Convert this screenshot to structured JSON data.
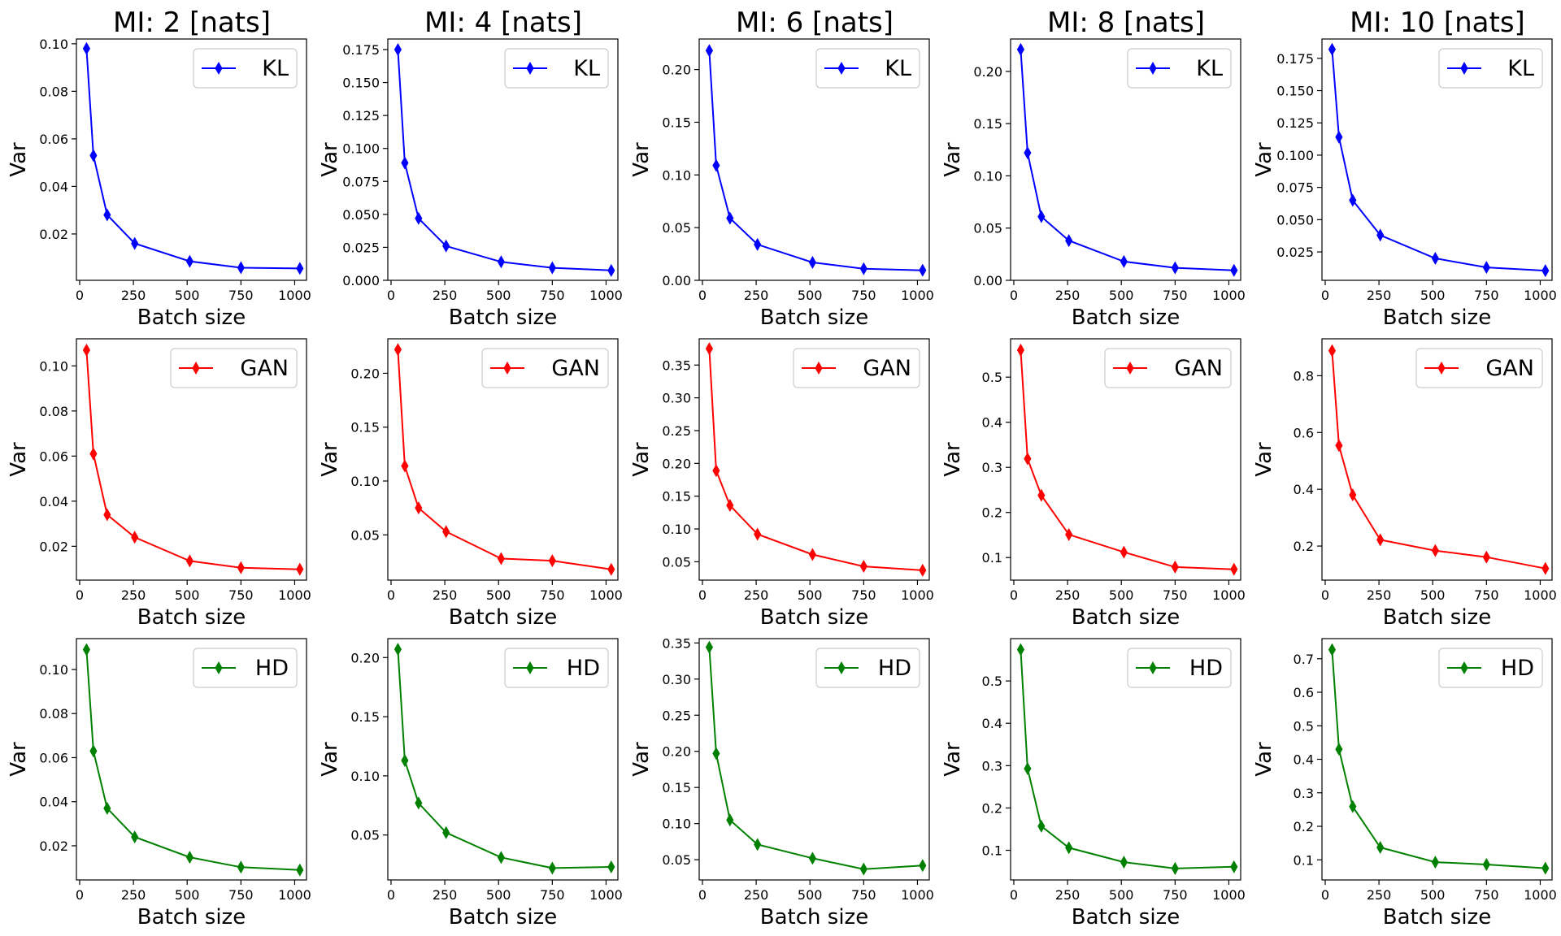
{
  "figure": {
    "column_titles": [
      "MI: 2 [nats]",
      "MI: 4 [nats]",
      "MI: 6 [nats]",
      "MI: 8 [nats]",
      "MI: 10 [nats]"
    ],
    "row_series": [
      "KL",
      "GAN",
      "HD"
    ],
    "row_colors": [
      "#0000ff",
      "#ff0000",
      "#008000"
    ]
  },
  "chart_data": [
    {
      "type": "line",
      "title": "MI: 2 [nats]",
      "series": [
        {
          "name": "KL",
          "color": "#0000ff",
          "x": [
            32,
            64,
            128,
            256,
            512,
            750,
            1024
          ],
          "values": [
            0.098,
            0.053,
            0.028,
            0.016,
            0.0085,
            0.0058,
            0.0055
          ]
        }
      ],
      "xlabel": "Batch size",
      "ylabel": "Var",
      "xlim": [
        -15,
        1055
      ],
      "ylim": [
        0.0005,
        0.102
      ],
      "xticks": [
        0,
        250,
        500,
        750,
        1000
      ],
      "yticks": [
        0.02,
        0.04,
        0.06,
        0.08,
        0.1
      ],
      "ytick_labels": [
        "0.02",
        "0.04",
        "0.06",
        "0.08",
        "0.10"
      ],
      "legend": "top-right"
    },
    {
      "type": "line",
      "title": "MI: 4 [nats]",
      "series": [
        {
          "name": "KL",
          "color": "#0000ff",
          "x": [
            32,
            64,
            128,
            256,
            512,
            750,
            1024
          ],
          "values": [
            0.175,
            0.089,
            0.047,
            0.026,
            0.014,
            0.0095,
            0.0075
          ]
        }
      ],
      "xlabel": "Batch size",
      "ylabel": "Var",
      "xlim": [
        -15,
        1055
      ],
      "ylim": [
        0.0,
        0.183
      ],
      "xticks": [
        0,
        250,
        500,
        750,
        1000
      ],
      "yticks": [
        0.0,
        0.025,
        0.05,
        0.075,
        0.1,
        0.125,
        0.15,
        0.175
      ],
      "ytick_labels": [
        "0.000",
        "0.025",
        "0.050",
        "0.075",
        "0.100",
        "0.125",
        "0.150",
        "0.175"
      ],
      "legend": "top-right"
    },
    {
      "type": "line",
      "title": "MI: 6 [nats]",
      "series": [
        {
          "name": "KL",
          "color": "#0000ff",
          "x": [
            32,
            64,
            128,
            256,
            512,
            750,
            1024
          ],
          "values": [
            0.218,
            0.109,
            0.059,
            0.034,
            0.017,
            0.011,
            0.0095
          ]
        }
      ],
      "xlabel": "Batch size",
      "ylabel": "Var",
      "xlim": [
        -15,
        1055
      ],
      "ylim": [
        0.0,
        0.229
      ],
      "xticks": [
        0,
        250,
        500,
        750,
        1000
      ],
      "yticks": [
        0.0,
        0.05,
        0.1,
        0.15,
        0.2
      ],
      "ytick_labels": [
        "0.00",
        "0.05",
        "0.10",
        "0.15",
        "0.20"
      ],
      "legend": "top-right"
    },
    {
      "type": "line",
      "title": "MI: 8 [nats]",
      "series": [
        {
          "name": "KL",
          "color": "#0000ff",
          "x": [
            32,
            64,
            128,
            256,
            512,
            750,
            1024
          ],
          "values": [
            0.221,
            0.122,
            0.061,
            0.038,
            0.018,
            0.012,
            0.0095
          ]
        }
      ],
      "xlabel": "Batch size",
      "ylabel": "Var",
      "xlim": [
        -15,
        1055
      ],
      "ylim": [
        0.0,
        0.231
      ],
      "xticks": [
        0,
        250,
        500,
        750,
        1000
      ],
      "yticks": [
        0.0,
        0.05,
        0.1,
        0.15,
        0.2
      ],
      "ytick_labels": [
        "0.00",
        "0.05",
        "0.10",
        "0.15",
        "0.20"
      ],
      "legend": "top-right"
    },
    {
      "type": "line",
      "title": "MI: 10 [nats]",
      "series": [
        {
          "name": "KL",
          "color": "#0000ff",
          "x": [
            32,
            64,
            128,
            256,
            512,
            750,
            1024
          ],
          "values": [
            0.182,
            0.114,
            0.065,
            0.038,
            0.02,
            0.013,
            0.0105
          ]
        }
      ],
      "xlabel": "Batch size",
      "ylabel": "Var",
      "xlim": [
        -15,
        1055
      ],
      "ylim": [
        0.003,
        0.19
      ],
      "xticks": [
        0,
        250,
        500,
        750,
        1000
      ],
      "yticks": [
        0.025,
        0.05,
        0.075,
        0.1,
        0.125,
        0.15,
        0.175
      ],
      "ytick_labels": [
        "0.025",
        "0.050",
        "0.075",
        "0.100",
        "0.125",
        "0.150",
        "0.175"
      ],
      "legend": "top-right"
    },
    {
      "type": "line",
      "title": "",
      "series": [
        {
          "name": "GAN",
          "color": "#ff0000",
          "x": [
            32,
            64,
            128,
            256,
            512,
            750,
            1024
          ],
          "values": [
            0.107,
            0.061,
            0.034,
            0.024,
            0.0135,
            0.0105,
            0.0098
          ]
        }
      ],
      "xlabel": "Batch size",
      "ylabel": "Var",
      "xlim": [
        -15,
        1055
      ],
      "ylim": [
        0.005,
        0.112
      ],
      "xticks": [
        0,
        250,
        500,
        750,
        1000
      ],
      "yticks": [
        0.02,
        0.04,
        0.06,
        0.08,
        0.1
      ],
      "ytick_labels": [
        "0.02",
        "0.04",
        "0.06",
        "0.08",
        "0.10"
      ],
      "legend": "top-right"
    },
    {
      "type": "line",
      "title": "",
      "series": [
        {
          "name": "GAN",
          "color": "#ff0000",
          "x": [
            32,
            64,
            128,
            256,
            512,
            750,
            1024
          ],
          "values": [
            0.222,
            0.114,
            0.075,
            0.053,
            0.028,
            0.026,
            0.018
          ]
        }
      ],
      "xlabel": "Batch size",
      "ylabel": "Var",
      "xlim": [
        -15,
        1055
      ],
      "ylim": [
        0.008,
        0.232
      ],
      "xticks": [
        0,
        250,
        500,
        750,
        1000
      ],
      "yticks": [
        0.05,
        0.1,
        0.15,
        0.2
      ],
      "ytick_labels": [
        "0.05",
        "0.10",
        "0.15",
        "0.20"
      ],
      "legend": "top-right"
    },
    {
      "type": "line",
      "title": "",
      "series": [
        {
          "name": "GAN",
          "color": "#ff0000",
          "x": [
            32,
            64,
            128,
            256,
            512,
            750,
            1024
          ],
          "values": [
            0.375,
            0.189,
            0.136,
            0.092,
            0.061,
            0.043,
            0.037
          ]
        }
      ],
      "xlabel": "Batch size",
      "ylabel": "Var",
      "xlim": [
        -15,
        1055
      ],
      "ylim": [
        0.022,
        0.39
      ],
      "xticks": [
        0,
        250,
        500,
        750,
        1000
      ],
      "yticks": [
        0.05,
        0.1,
        0.15,
        0.2,
        0.25,
        0.3,
        0.35
      ],
      "ytick_labels": [
        "0.05",
        "0.10",
        "0.15",
        "0.20",
        "0.25",
        "0.30",
        "0.35"
      ],
      "legend": "top-right"
    },
    {
      "type": "line",
      "title": "",
      "series": [
        {
          "name": "GAN",
          "color": "#ff0000",
          "x": [
            32,
            64,
            128,
            256,
            512,
            750,
            1024
          ],
          "values": [
            0.56,
            0.319,
            0.238,
            0.151,
            0.112,
            0.079,
            0.074
          ]
        }
      ],
      "xlabel": "Batch size",
      "ylabel": "Var",
      "xlim": [
        -15,
        1055
      ],
      "ylim": [
        0.05,
        0.585
      ],
      "xticks": [
        0,
        250,
        500,
        750,
        1000
      ],
      "yticks": [
        0.1,
        0.2,
        0.3,
        0.4,
        0.5
      ],
      "ytick_labels": [
        "0.1",
        "0.2",
        "0.3",
        "0.4",
        "0.5"
      ],
      "legend": "top-right"
    },
    {
      "type": "line",
      "title": "",
      "series": [
        {
          "name": "GAN",
          "color": "#ff0000",
          "x": [
            32,
            64,
            128,
            256,
            512,
            750,
            1024
          ],
          "values": [
            0.888,
            0.554,
            0.38,
            0.222,
            0.184,
            0.161,
            0.121
          ]
        }
      ],
      "xlabel": "Batch size",
      "ylabel": "Var",
      "xlim": [
        -15,
        1055
      ],
      "ylim": [
        0.08,
        0.93
      ],
      "xticks": [
        0,
        250,
        500,
        750,
        1000
      ],
      "yticks": [
        0.2,
        0.4,
        0.6,
        0.8
      ],
      "ytick_labels": [
        "0.2",
        "0.4",
        "0.6",
        "0.8"
      ],
      "legend": "top-right"
    },
    {
      "type": "line",
      "title": "",
      "series": [
        {
          "name": "HD",
          "color": "#008000",
          "x": [
            32,
            64,
            128,
            256,
            512,
            750,
            1024
          ],
          "values": [
            0.109,
            0.063,
            0.037,
            0.024,
            0.0148,
            0.0103,
            0.009
          ]
        }
      ],
      "xlabel": "Batch size",
      "ylabel": "Var",
      "xlim": [
        -15,
        1055
      ],
      "ylim": [
        0.0045,
        0.114
      ],
      "xticks": [
        0,
        250,
        500,
        750,
        1000
      ],
      "yticks": [
        0.02,
        0.04,
        0.06,
        0.08,
        0.1
      ],
      "ytick_labels": [
        "0.02",
        "0.04",
        "0.06",
        "0.08",
        "0.10"
      ],
      "legend": "top-right"
    },
    {
      "type": "line",
      "title": "",
      "series": [
        {
          "name": "HD",
          "color": "#008000",
          "x": [
            32,
            64,
            128,
            256,
            512,
            750,
            1024
          ],
          "values": [
            0.207,
            0.113,
            0.077,
            0.052,
            0.031,
            0.022,
            0.023
          ]
        }
      ],
      "xlabel": "Batch size",
      "ylabel": "Var",
      "xlim": [
        -15,
        1055
      ],
      "ylim": [
        0.012,
        0.216
      ],
      "xticks": [
        0,
        250,
        500,
        750,
        1000
      ],
      "yticks": [
        0.05,
        0.1,
        0.15,
        0.2
      ],
      "ytick_labels": [
        "0.05",
        "0.10",
        "0.15",
        "0.20"
      ],
      "legend": "top-right"
    },
    {
      "type": "line",
      "title": "",
      "series": [
        {
          "name": "HD",
          "color": "#008000",
          "x": [
            32,
            64,
            128,
            256,
            512,
            750,
            1024
          ],
          "values": [
            0.344,
            0.197,
            0.105,
            0.071,
            0.052,
            0.037,
            0.042
          ]
        }
      ],
      "xlabel": "Batch size",
      "ylabel": "Var",
      "xlim": [
        -15,
        1055
      ],
      "ylim": [
        0.022,
        0.356
      ],
      "xticks": [
        0,
        250,
        500,
        750,
        1000
      ],
      "yticks": [
        0.05,
        0.1,
        0.15,
        0.2,
        0.25,
        0.3,
        0.35
      ],
      "ytick_labels": [
        "0.05",
        "0.10",
        "0.15",
        "0.20",
        "0.25",
        "0.30",
        "0.35"
      ],
      "legend": "top-right"
    },
    {
      "type": "line",
      "title": "",
      "series": [
        {
          "name": "HD",
          "color": "#008000",
          "x": [
            32,
            64,
            128,
            256,
            512,
            750,
            1024
          ],
          "values": [
            0.574,
            0.293,
            0.157,
            0.106,
            0.072,
            0.057,
            0.061
          ]
        }
      ],
      "xlabel": "Batch size",
      "ylabel": "Var",
      "xlim": [
        -15,
        1055
      ],
      "ylim": [
        0.03,
        0.6
      ],
      "xticks": [
        0,
        250,
        500,
        750,
        1000
      ],
      "yticks": [
        0.1,
        0.2,
        0.3,
        0.4,
        0.5
      ],
      "ytick_labels": [
        "0.1",
        "0.2",
        "0.3",
        "0.4",
        "0.5"
      ],
      "legend": "top-right"
    },
    {
      "type": "line",
      "title": "",
      "series": [
        {
          "name": "HD",
          "color": "#008000",
          "x": [
            32,
            64,
            128,
            256,
            512,
            750,
            1024
          ],
          "values": [
            0.727,
            0.43,
            0.259,
            0.137,
            0.093,
            0.086,
            0.075
          ]
        }
      ],
      "xlabel": "Batch size",
      "ylabel": "Var",
      "xlim": [
        -15,
        1055
      ],
      "ylim": [
        0.04,
        0.76
      ],
      "xticks": [
        0,
        250,
        500,
        750,
        1000
      ],
      "yticks": [
        0.1,
        0.2,
        0.3,
        0.4,
        0.5,
        0.6,
        0.7
      ],
      "ytick_labels": [
        "0.1",
        "0.2",
        "0.3",
        "0.4",
        "0.5",
        "0.6",
        "0.7"
      ],
      "legend": "top-right"
    }
  ]
}
